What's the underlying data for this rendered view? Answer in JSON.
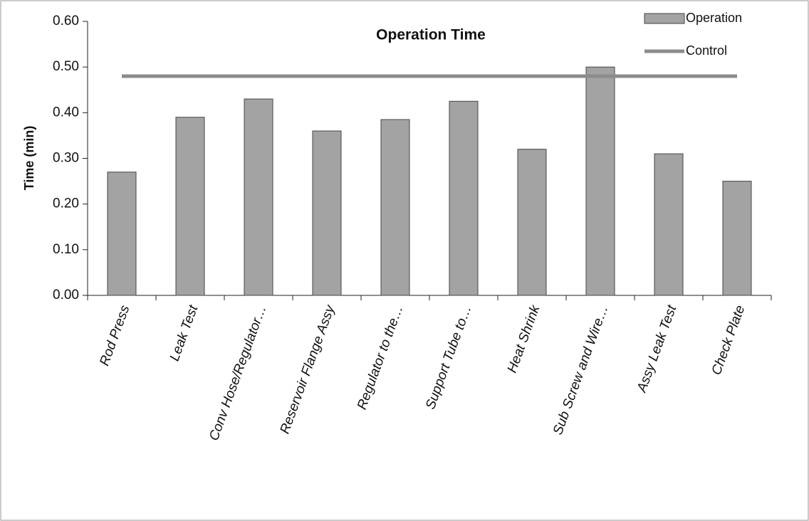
{
  "chart_data": {
    "type": "bar",
    "title": "Operation Time",
    "y_label": "Time (min)",
    "categories": [
      "Rod Press",
      "Leak Test",
      "Conv Hose/Regulator…",
      "Reservoir Flange Assy",
      "Regulator to the…",
      "Support Tube to…",
      "Heat Shrink",
      "Sub Screw and Wire…",
      "Assy Leak Test",
      "Check Plate"
    ],
    "series": [
      {
        "name": "Operation",
        "type": "bar",
        "color": "#a3a3a3",
        "values": [
          0.27,
          0.39,
          0.43,
          0.36,
          0.385,
          0.425,
          0.32,
          0.5,
          0.31,
          0.25
        ]
      },
      {
        "name": "Control",
        "type": "line",
        "color": "#8c8c8c",
        "values": [
          0.48,
          0.48,
          0.48,
          0.48,
          0.48,
          0.48,
          0.48,
          0.48,
          0.48,
          0.48
        ]
      }
    ],
    "ylim": [
      0,
      0.6
    ],
    "yticks": [
      {
        "value": 0,
        "label": "0.00"
      },
      {
        "value": 0.1,
        "label": "0.10"
      },
      {
        "value": 0.2,
        "label": "0.20"
      },
      {
        "value": 0.3,
        "label": "0.30"
      },
      {
        "value": 0.4,
        "label": "0.40"
      },
      {
        "value": 0.5,
        "label": "0.50"
      },
      {
        "value": 0.6,
        "label": "0.60"
      }
    ],
    "legend": "top-right"
  }
}
